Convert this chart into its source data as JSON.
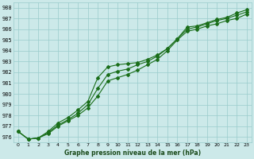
{
  "xlabel": "Graphe pression niveau de la mer (hPa)",
  "ylim": [
    975.5,
    988.5
  ],
  "xlim": [
    -0.5,
    23.5
  ],
  "yticks": [
    976,
    977,
    978,
    979,
    980,
    981,
    982,
    983,
    984,
    985,
    986,
    987,
    988
  ],
  "xticks": [
    0,
    1,
    2,
    3,
    4,
    5,
    6,
    7,
    8,
    9,
    10,
    11,
    12,
    13,
    14,
    15,
    16,
    17,
    18,
    19,
    20,
    21,
    22,
    23
  ],
  "bg_color": "#cce9e9",
  "grid_color": "#99cccc",
  "line_color": "#1a6e1a",
  "line1": [
    976.5,
    975.8,
    975.9,
    976.5,
    977.3,
    977.8,
    978.5,
    979.3,
    981.5,
    982.5,
    982.7,
    982.8,
    982.9,
    983.2,
    983.6,
    984.2,
    985.1,
    986.2,
    986.3,
    986.6,
    986.9,
    987.1,
    987.5,
    987.8
  ],
  "line2": [
    976.5,
    975.8,
    975.9,
    976.4,
    977.1,
    977.6,
    978.2,
    979.0,
    980.5,
    981.8,
    982.1,
    982.3,
    982.7,
    983.0,
    983.5,
    984.2,
    985.1,
    986.0,
    986.2,
    986.5,
    986.8,
    987.0,
    987.3,
    987.6
  ],
  "line3": [
    976.5,
    975.8,
    975.9,
    976.3,
    977.0,
    977.5,
    978.0,
    978.7,
    979.8,
    981.2,
    981.5,
    981.8,
    982.2,
    982.7,
    983.2,
    984.0,
    985.0,
    985.8,
    986.0,
    986.3,
    986.5,
    986.8,
    987.0,
    987.4
  ]
}
